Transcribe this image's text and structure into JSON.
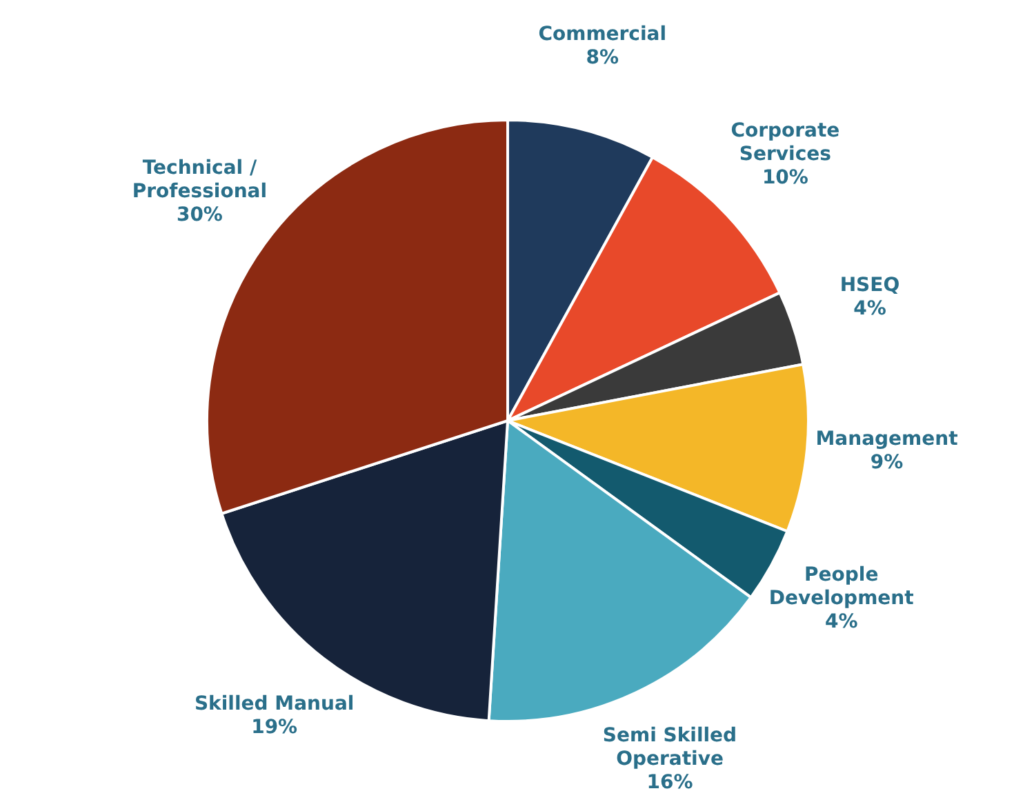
{
  "chart_data": {
    "type": "pie",
    "categories": [
      "Commercial",
      "Corporate Services",
      "HSEQ",
      "Management",
      "People Development",
      "Semi Skilled Operative",
      "Skilled Manual",
      "Technical / Professional"
    ],
    "values": [
      8,
      10,
      4,
      9,
      4,
      16,
      19,
      30
    ],
    "value_labels": [
      "8%",
      "10%",
      "4%",
      "9%",
      "4%",
      "16%",
      "19%",
      "30%"
    ],
    "colors": [
      "#1f3a5c",
      "#e8492a",
      "#3a3a3a",
      "#f4b728",
      "#135a6e",
      "#4aaabf",
      "#16233a",
      "#8c2a12"
    ]
  }
}
